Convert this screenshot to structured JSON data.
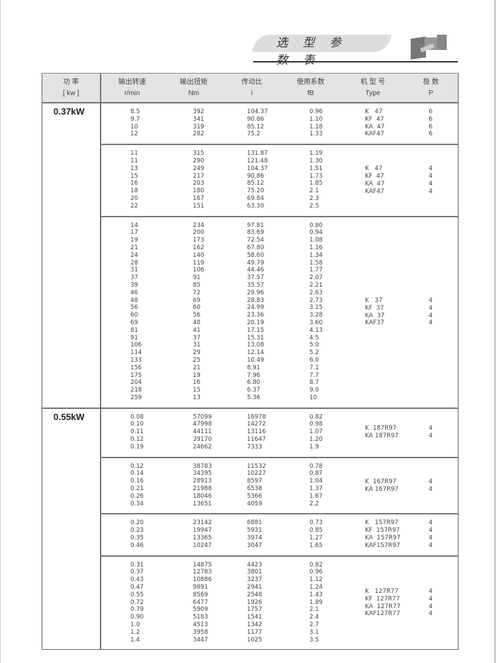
{
  "header": {
    "title": "选 型 参 数 表",
    "product_image": "gear-motor-image"
  },
  "columns": [
    {
      "cn": "功  率",
      "en": "[ kw ]"
    },
    {
      "cn": "输出转速",
      "en": "r/min"
    },
    {
      "cn": "输出扭矩",
      "en": "Nm"
    },
    {
      "cn": "传动比",
      "en": "i"
    },
    {
      "cn": "使用系数",
      "en": "fB"
    },
    {
      "cn": "机 型 号",
      "en": "Type"
    },
    {
      "cn": "极  数",
      "en": "P"
    }
  ],
  "sections": [
    {
      "power": "0.37kW",
      "groups": [
        {
          "align": "top",
          "rows": [
            [
              "8.5",
              "392",
              "104.37",
              "0.96"
            ],
            [
              "9.7",
              "341",
              "90.86",
              "1.10"
            ],
            [
              "10",
              "319",
              "85.12",
              "1.18"
            ],
            [
              "12",
              "282",
              "75.2",
              "1.33"
            ]
          ],
          "types": [
            "K   47",
            "KF  47",
            "KA  47",
            "KAF47"
          ],
          "poles": [
            "6",
            "6",
            "6",
            "6"
          ]
        },
        {
          "rows": [
            [
              "11",
              "315",
              "131.87",
              "1.19"
            ],
            [
              "11",
              "290",
              "121.48",
              "1.30"
            ],
            [
              "13",
              "249",
              "104.37",
              "1.51"
            ],
            [
              "15",
              "217",
              "90.86",
              "1.73"
            ],
            [
              "16",
              "203",
              "85.12",
              "1.85"
            ],
            [
              "18",
              "180",
              "75.20",
              "2.1"
            ],
            [
              "20",
              "167",
              "69.84",
              "2.3"
            ],
            [
              "22",
              "151",
              "63.30",
              "2.5"
            ]
          ],
          "types": [
            "K   47",
            "KF  47",
            "KA  47",
            "KAF47"
          ],
          "poles": [
            "4",
            "4",
            "4",
            "4"
          ]
        },
        {
          "rows": [
            [
              "14",
              "234",
              "97.81",
              "0.80"
            ],
            [
              "17",
              "200",
              "83.69",
              "0.94"
            ],
            [
              "19",
              "173",
              "72.54",
              "1.08"
            ],
            [
              "21",
              "162",
              "67.80",
              "1.16"
            ],
            [
              "24",
              "140",
              "58.60",
              "1.34"
            ],
            [
              "28",
              "119",
              "49.79",
              "1.58"
            ],
            [
              "31",
              "106",
              "44.46",
              "1.77"
            ],
            [
              "37",
              "91",
              "37.57",
              "2.07"
            ],
            [
              "39",
              "85",
              "35.57",
              "2.21"
            ],
            [
              "46",
              "72",
              "29.96",
              "2.63"
            ],
            [
              "48",
              "69",
              "28.83",
              "2.73"
            ],
            [
              "56",
              "60",
              "24.99",
              "3.15"
            ],
            [
              "60",
              "56",
              "23.36",
              "3.28"
            ],
            [
              "69",
              "48",
              "20.19",
              "3.60"
            ],
            [
              "81",
              "41",
              "17.15",
              "4.13"
            ],
            [
              "91",
              "37",
              "15.31",
              "4.5"
            ],
            [
              "106",
              "31",
              "13.08",
              "5.0"
            ],
            [
              "114",
              "29",
              "12.14",
              "5.2"
            ],
            [
              "133",
              "25",
              "10.49",
              "6.0"
            ],
            [
              "156",
              "21",
              "8.91",
              "7.1"
            ],
            [
              "175",
              "19",
              "7.96",
              "7.7"
            ],
            [
              "204",
              "16",
              "6.80",
              "8.7"
            ],
            [
              "218",
              "15",
              "6.37",
              "9.0"
            ],
            [
              "259",
              "13",
              "5.36",
              "10"
            ]
          ],
          "types": [
            "K   37",
            "KF  37",
            "KA  37",
            "KAF37"
          ],
          "poles": [
            "4",
            "4",
            "4",
            "4"
          ]
        }
      ]
    },
    {
      "power": "0.55kW",
      "groups": [
        {
          "rows": [
            [
              "0.08",
              "57099",
              "16978",
              "0.82"
            ],
            [
              "0.10",
              "47998",
              "14272",
              "0.98"
            ],
            [
              "0.11",
              "44111",
              "13116",
              "1.07"
            ],
            [
              "0.12",
              "39170",
              "11647",
              "1.20"
            ],
            [
              "0.19",
              "24662",
              "7333",
              "1.9"
            ]
          ],
          "types": [
            "K  187R97",
            "KA 187R97"
          ],
          "poles": [
            "4",
            "4"
          ]
        },
        {
          "rows": [
            [
              "0.12",
              "38783",
              "11532",
              "0.78"
            ],
            [
              "0.14",
              "34395",
              "10227",
              "0.87"
            ],
            [
              "0.16",
              "28913",
              "8597",
              "1.04"
            ],
            [
              "0.21",
              "21988",
              "6538",
              "1.37"
            ],
            [
              "0.26",
              "18046",
              "5366",
              "1.67"
            ],
            [
              "0.34",
              "13651",
              "4059",
              "2.2"
            ]
          ],
          "types": [
            "K  167R97",
            "KA 167R97"
          ],
          "poles": [
            "4",
            "4"
          ]
        },
        {
          "align": "top",
          "rows": [
            [
              "0.20",
              "23142",
              "6881",
              "0.73"
            ],
            [
              "0.23",
              "19947",
              "5931",
              "0.85"
            ],
            [
              "0.35",
              "13365",
              "3974",
              "1.27"
            ],
            [
              "0.46",
              "10247",
              "3047",
              "1.65"
            ]
          ],
          "types": [
            "K   157R97",
            "KF  157R97",
            "KA  157R97",
            "KAF157R97"
          ],
          "poles": [
            "4",
            "4",
            "4",
            "4"
          ]
        },
        {
          "rows": [
            [
              "0.31",
              "14875",
              "4423",
              "0.82"
            ],
            [
              "0.37",
              "12783",
              "3801",
              "0.96"
            ],
            [
              "0.43",
              "10886",
              "3237",
              "1.12"
            ],
            [
              "0.47",
              "9891",
              "2941",
              "1.24"
            ],
            [
              "0.55",
              "8569",
              "2548",
              "1.43"
            ],
            [
              "0.72",
              "6477",
              "1926",
              "1.89"
            ],
            [
              "0.79",
              "5909",
              "1757",
              "2.1"
            ],
            [
              "0.90",
              "5183",
              "1541",
              "2.4"
            ],
            [
              "1.0",
              "4513",
              "1342",
              "2.7"
            ],
            [
              "1.2",
              "3958",
              "1177",
              "3.1"
            ],
            [
              "1.4",
              "3447",
              "1025",
              "3.5"
            ]
          ],
          "types": [
            "K   127R77",
            "KF  127R77",
            "KA  127R77",
            "KAF127R77"
          ],
          "poles": [
            "4",
            "4",
            "4",
            "4"
          ]
        }
      ]
    }
  ]
}
